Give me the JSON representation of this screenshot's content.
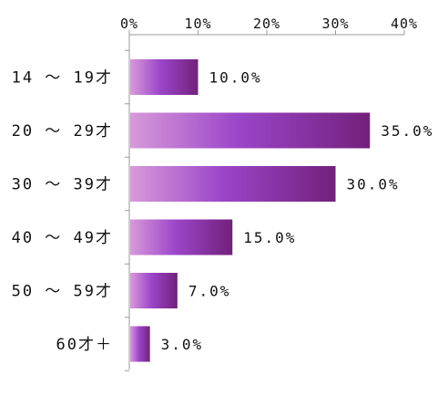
{
  "chart_data": {
    "type": "bar",
    "orientation": "horizontal",
    "categories": [
      "14 ～ 19才",
      "20 ～ 29才",
      "30 ～ 39才",
      "40 ～ 49才",
      "50 ～ 59才",
      "60才＋"
    ],
    "values": [
      10.0,
      35.0,
      30.0,
      15.0,
      7.0,
      3.0
    ],
    "value_labels": [
      "10.0%",
      "35.0%",
      "30.0%",
      "15.0%",
      "7.0%",
      "3.0%"
    ],
    "x_ticks": [
      "0%",
      "10%",
      "20%",
      "30%",
      "40%"
    ],
    "xlim": [
      0,
      40
    ],
    "x_axis_position": "top",
    "grid": false,
    "title": "",
    "xlabel": "",
    "ylabel": "",
    "colors": {
      "bar_light": "#d79ad9",
      "bar_mid": "#9b45c9",
      "bar_dark": "#73207c",
      "axis": "#9a9a9a"
    }
  }
}
